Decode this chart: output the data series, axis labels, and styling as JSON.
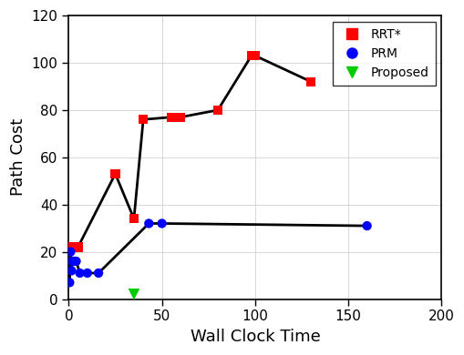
{
  "rrt_x": [
    1,
    2,
    5,
    25,
    35,
    40,
    55,
    60,
    80,
    98,
    100,
    130
  ],
  "rrt_y": [
    22,
    22,
    22,
    53,
    34,
    76,
    77,
    77,
    80,
    103,
    103,
    92
  ],
  "prm_x": [
    0.5,
    1,
    1.5,
    2,
    3,
    4,
    6,
    10,
    16,
    43,
    50,
    160
  ],
  "prm_y": [
    7,
    20,
    12,
    16,
    16,
    16,
    11,
    11,
    11,
    32,
    32,
    31
  ],
  "proposed_x": [
    35
  ],
  "proposed_y": [
    2
  ],
  "rrt_color": "#ff0000",
  "prm_color": "#0000ff",
  "proposed_color": "#00cc00",
  "line_color": "#000000",
  "xlabel": "Wall Clock Time",
  "ylabel": "Path Cost",
  "xlim": [
    0,
    200
  ],
  "ylim": [
    0,
    120
  ],
  "xticks": [
    0,
    50,
    100,
    150,
    200
  ],
  "yticks": [
    0,
    20,
    40,
    60,
    80,
    100,
    120
  ],
  "legend_labels": [
    "RRT*",
    "PRM",
    "Proposed"
  ],
  "marker_size_sq": 55,
  "line_width": 2.0,
  "tick_labelsize": 11,
  "label_fontsize": 13
}
